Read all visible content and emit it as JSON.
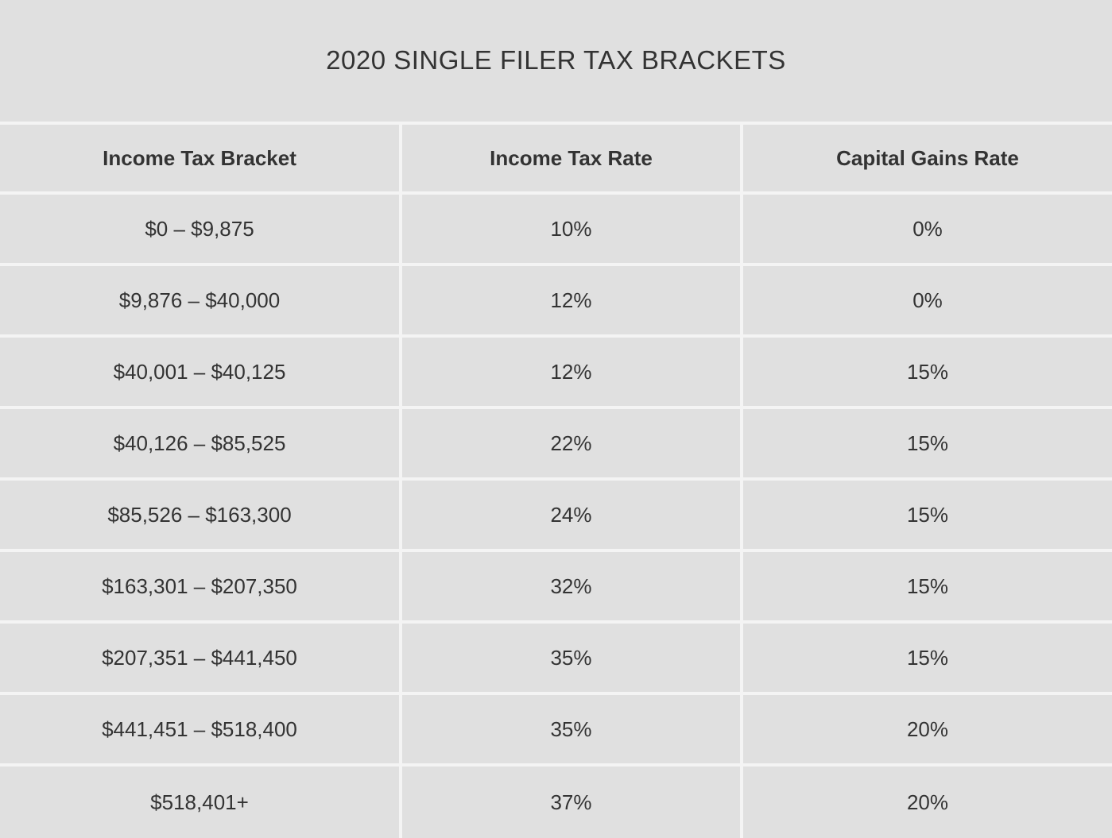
{
  "title": "2020 SINGLE FILER TAX BRACKETS",
  "table": {
    "headers": [
      "Income Tax Bracket",
      "Income Tax Rate",
      "Capital Gains Rate"
    ],
    "rows": [
      [
        "$0 – $9,875",
        "10%",
        "0%"
      ],
      [
        "$9,876 – $40,000",
        "12%",
        "0%"
      ],
      [
        "$40,001 – $40,125",
        "12%",
        "15%"
      ],
      [
        "$40,126 – $85,525",
        "22%",
        "15%"
      ],
      [
        "$85,526 – $163,300",
        "24%",
        "15%"
      ],
      [
        "$163,301 – $207,350",
        "32%",
        "15%"
      ],
      [
        "$207,351 – $441,450",
        "35%",
        "15%"
      ],
      [
        "$441,451 – $518,400",
        "35%",
        "20%"
      ],
      [
        "$518,401+",
        "37%",
        "20%"
      ]
    ]
  },
  "colors": {
    "background": "#e0e0e0",
    "grid_lines": "#f4f4f4",
    "text": "#333333"
  }
}
